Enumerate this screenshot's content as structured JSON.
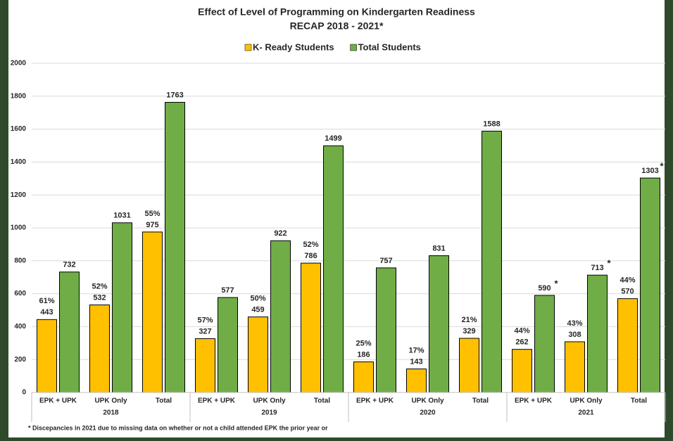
{
  "chart_data": {
    "type": "bar",
    "title": "Effect of Level of Programming on Kindergarten Readiness",
    "subtitle": "RECAP 2018 - 2021*",
    "categories": [
      "EPK + UPK",
      "UPK Only",
      "Total",
      "EPK + UPK",
      "UPK Only",
      "Total",
      "EPK + UPK",
      "UPK Only",
      "Total",
      "EPK + UPK",
      "UPK Only",
      "Total"
    ],
    "x_groups": [
      "2018",
      "2019",
      "2020",
      "2021"
    ],
    "series": [
      {
        "name": "K- Ready Students",
        "color": "#ffc000",
        "values": [
          443,
          532,
          975,
          327,
          459,
          786,
          186,
          143,
          329,
          262,
          308,
          570
        ],
        "percent_labels": [
          "61%",
          "52%",
          "55%",
          "57%",
          "50%",
          "52%",
          "25%",
          "17%",
          "21%",
          "44%",
          "43%",
          "44%"
        ]
      },
      {
        "name": "Total Students",
        "color": "#70ad47",
        "values": [
          732,
          1031,
          1763,
          577,
          922,
          1499,
          757,
          831,
          1588,
          590,
          713,
          1303
        ]
      }
    ],
    "annotations": [
      {
        "index": 9,
        "text": "*"
      },
      {
        "index": 10,
        "text": "*"
      },
      {
        "index": 11,
        "text": "*"
      }
    ],
    "ylim": [
      0,
      2000
    ],
    "yticks": [
      0,
      200,
      400,
      600,
      800,
      1000,
      1200,
      1400,
      1600,
      1800,
      2000
    ],
    "grid": true,
    "legend": "top",
    "footnote": "* Discepancies in 2021 due to missing data on whether or not a child attended EPK the prior year or"
  }
}
